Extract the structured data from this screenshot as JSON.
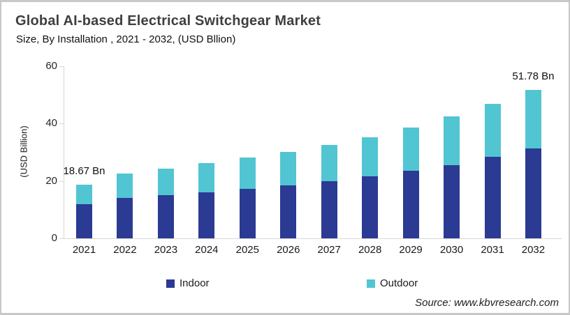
{
  "header": {
    "title": "Global AI-based Electrical Switchgear Market",
    "subtitle": "Size, By Installation , 2021 - 2032, (USD Bllion)"
  },
  "chart_data": {
    "type": "bar",
    "stacked": true,
    "title": "Global AI-based Electrical Switchgear Market",
    "subtitle": "Size, By Installation , 2021 - 2032, (USD Bllion)",
    "categories": [
      "2021",
      "2022",
      "2023",
      "2024",
      "2025",
      "2026",
      "2027",
      "2028",
      "2029",
      "2030",
      "2031",
      "2032"
    ],
    "series": [
      {
        "name": "Indoor",
        "color": "#2b3a92",
        "values": [
          11.9,
          14.0,
          15.0,
          16.0,
          17.3,
          18.5,
          20.0,
          21.6,
          23.6,
          25.6,
          28.5,
          31.3
        ]
      },
      {
        "name": "Outdoor",
        "color": "#52c5d2",
        "values": [
          6.77,
          8.5,
          9.4,
          10.2,
          10.8,
          11.6,
          12.5,
          13.7,
          15.1,
          16.8,
          18.3,
          20.48
        ]
      }
    ],
    "totals": [
      18.67,
      22.5,
      24.4,
      26.2,
      28.1,
      30.1,
      32.5,
      35.3,
      38.7,
      42.4,
      46.8,
      51.78
    ],
    "annotations": [
      {
        "category": "2021",
        "text": "18.67 Bn"
      },
      {
        "category": "2032",
        "text": "51.78 Bn"
      }
    ],
    "xlabel": "",
    "ylabel": "(USD Billion)",
    "ylim": [
      0,
      60
    ],
    "yticks": [
      "0",
      "20",
      "40",
      "60"
    ],
    "grid": false,
    "legend_position": "bottom"
  },
  "legend": {
    "items": [
      {
        "label": "Indoor",
        "color": "#2b3a92"
      },
      {
        "label": "Outdoor",
        "color": "#52c5d2"
      }
    ]
  },
  "footer": {
    "source": "Source: www.kbvresearch.com"
  },
  "colors": {
    "indoor": "#2b3a92",
    "outdoor": "#52c5d2",
    "axis": "#d6d6d6",
    "title_text": "#3f3f3f"
  }
}
